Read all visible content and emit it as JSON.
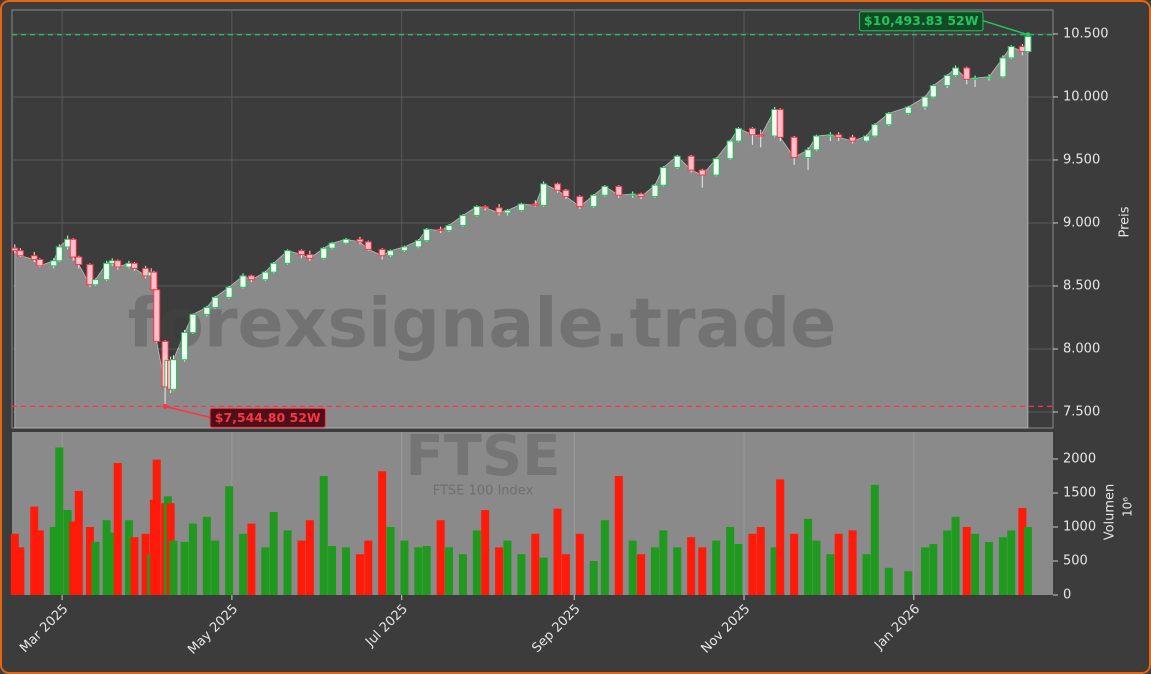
{
  "chart_data": {
    "type": "candlestick",
    "watermark": "forexsignale.trade",
    "symbol": "FTSE",
    "symbol_name": "FTSE 100 Index",
    "y_axis_label": "Preis",
    "volume_axis_label": "Volumen",
    "volume_axis_unit": "10⁶",
    "up_color": "#22c55e",
    "down_color": "#ff3344",
    "volume_up_color": "#1f9a1f",
    "volume_down_color": "#ff1a0a",
    "area_color": "#8a8a8a",
    "grid": true,
    "xlim": [
      "2025-02-11",
      "2026-02-20"
    ],
    "xticks": [
      {
        "value": "2025-03-01",
        "label": "Mar 2025"
      },
      {
        "value": "2025-05-01",
        "label": "May 2025"
      },
      {
        "value": "2025-07-01",
        "label": "Jul 2025"
      },
      {
        "value": "2025-09-01",
        "label": "Sep 2025"
      },
      {
        "value": "2025-11-01",
        "label": "Nov 2025"
      },
      {
        "value": "2026-01-01",
        "label": "Jan 2026"
      }
    ],
    "ylim": [
      7373,
      10690
    ],
    "yticks": [
      {
        "value": 7500,
        "label": "7.500"
      },
      {
        "value": 8000,
        "label": "8.000"
      },
      {
        "value": 8500,
        "label": "8.500"
      },
      {
        "value": 9000,
        "label": "9.000"
      },
      {
        "value": 9500,
        "label": "9.500"
      },
      {
        "value": 10000,
        "label": "10.000"
      },
      {
        "value": 10500,
        "label": "10.500"
      }
    ],
    "volume_ylim": [
      0,
      2397
    ],
    "volume_yticks": [
      0,
      500,
      1000,
      1500,
      2000
    ],
    "annotations": [
      {
        "text": "$10,493.83 52W",
        "value": 10493.83,
        "x": "2026-02-11",
        "color": "#22c55e"
      },
      {
        "text": "$7,544.80 52W",
        "value": 7544.8,
        "x": "2025-04-07",
        "color": "#ff3344"
      }
    ],
    "x": [
      "2025-02-12",
      "2025-02-14",
      "2025-02-19",
      "2025-02-21",
      "2025-02-26",
      "2025-02-28",
      "2025-03-03",
      "2025-03-05",
      "2025-03-07",
      "2025-03-11",
      "2025-03-13",
      "2025-03-17",
      "2025-03-19",
      "2025-03-21",
      "2025-03-25",
      "2025-03-27",
      "2025-03-31",
      "2025-04-02",
      "2025-04-03",
      "2025-04-04",
      "2025-04-07",
      "2025-04-08",
      "2025-04-09",
      "2025-04-10",
      "2025-04-14",
      "2025-04-17",
      "2025-04-22",
      "2025-04-25",
      "2025-04-30",
      "2025-05-05",
      "2025-05-08",
      "2025-05-13",
      "2025-05-16",
      "2025-05-21",
      "2025-05-26",
      "2025-05-29",
      "2025-06-03",
      "2025-06-06",
      "2025-06-11",
      "2025-06-16",
      "2025-06-19",
      "2025-06-24",
      "2025-06-27",
      "2025-07-02",
      "2025-07-07",
      "2025-07-10",
      "2025-07-15",
      "2025-07-18",
      "2025-07-23",
      "2025-07-28",
      "2025-07-31",
      "2025-08-05",
      "2025-08-08",
      "2025-08-13",
      "2025-08-18",
      "2025-08-21",
      "2025-08-26",
      "2025-08-29",
      "2025-09-03",
      "2025-09-08",
      "2025-09-12",
      "2025-09-17",
      "2025-09-22",
      "2025-09-25",
      "2025-09-30",
      "2025-10-03",
      "2025-10-08",
      "2025-10-13",
      "2025-10-17",
      "2025-10-22",
      "2025-10-27",
      "2025-10-30",
      "2025-11-04",
      "2025-11-07",
      "2025-11-12",
      "2025-11-14",
      "2025-11-19",
      "2025-11-24",
      "2025-11-27",
      "2025-12-02",
      "2025-12-05",
      "2025-12-10",
      "2025-12-15",
      "2025-12-18",
      "2025-12-23",
      "2025-12-30",
      "2026-01-05",
      "2026-01-08",
      "2026-01-13",
      "2026-01-16",
      "2026-01-20",
      "2026-01-23",
      "2026-01-28",
      "2026-02-02",
      "2026-02-05",
      "2026-02-09",
      "2026-02-11"
    ],
    "open": [
      8800,
      8780,
      8740,
      8710,
      8660,
      8700,
      8810,
      8870,
      8730,
      8670,
      8510,
      8550,
      8680,
      8700,
      8650,
      8680,
      8640,
      8580,
      8610,
      8470,
      8060,
      7700,
      7910,
      7680,
      7915,
      8130,
      8275,
      8330,
      8410,
      8490,
      8580,
      8550,
      8610,
      8680,
      8780,
      8750,
      8720,
      8800,
      8840,
      8870,
      8850,
      8790,
      8740,
      8780,
      8810,
      8860,
      8950,
      8940,
      8980,
      9060,
      9130,
      9120,
      9080,
      9100,
      9150,
      9140,
      9310,
      9260,
      9210,
      9130,
      9220,
      9290,
      9220,
      9230,
      9210,
      9300,
      9440,
      9530,
      9420,
      9380,
      9510,
      9650,
      9750,
      9700,
      9690,
      9900,
      9680,
      9520,
      9580,
      9690,
      9700,
      9680,
      9650,
      9690,
      9780,
      9870,
      9920,
      10000,
      10090,
      10170,
      10230,
      10140,
      10150,
      10160,
      10310,
      10400,
      10360
    ],
    "high": [
      8830,
      8800,
      8770,
      8720,
      8720,
      8830,
      8900,
      8880,
      8740,
      8680,
      8560,
      8700,
      8720,
      8710,
      8700,
      8690,
      8660,
      8640,
      8620,
      8480,
      8070,
      7920,
      7940,
      7950,
      8150,
      8280,
      8340,
      8420,
      8500,
      8600,
      8590,
      8620,
      8690,
      8790,
      8790,
      8780,
      8810,
      8850,
      8880,
      8890,
      8860,
      8800,
      8790,
      8820,
      8870,
      8960,
      8970,
      8990,
      9070,
      9140,
      9140,
      9150,
      9110,
      9160,
      9180,
      9330,
      9320,
      9270,
      9220,
      9230,
      9300,
      9300,
      9250,
      9240,
      9310,
      9450,
      9540,
      9540,
      9430,
      9520,
      9660,
      9760,
      9760,
      9740,
      9920,
      9910,
      9690,
      9600,
      9700,
      9720,
      9720,
      9700,
      9700,
      9790,
      9880,
      9930,
      10010,
      10100,
      10180,
      10250,
      10240,
      10170,
      10180,
      10330,
      10410,
      10420,
      10493.83
    ],
    "low": [
      8760,
      8730,
      8690,
      8650,
      8640,
      8690,
      8790,
      8700,
      8640,
      8490,
      8500,
      8540,
      8660,
      8630,
      8640,
      8620,
      8560,
      8570,
      8450,
      8050,
      7544.8,
      7690,
      7650,
      7670,
      7900,
      8120,
      8260,
      8320,
      8400,
      8480,
      8530,
      8540,
      8600,
      8670,
      8720,
      8700,
      8710,
      8790,
      8830,
      8830,
      8780,
      8710,
      8730,
      8770,
      8800,
      8850,
      8920,
      8930,
      8970,
      9050,
      9100,
      9060,
      9060,
      9090,
      9130,
      9130,
      9240,
      9190,
      9110,
      9120,
      9210,
      9200,
      9200,
      9190,
      9200,
      9290,
      9430,
      9400,
      9280,
      9370,
      9500,
      9640,
      9620,
      9600,
      9680,
      9650,
      9460,
      9420,
      9570,
      9650,
      9650,
      9630,
      9640,
      9680,
      9770,
      9860,
      9900,
      9990,
      10070,
      10160,
      10100,
      10080,
      10130,
      10150,
      10300,
      10330,
      10350
    ],
    "close": [
      8780,
      8740,
      8710,
      8660,
      8700,
      8810,
      8870,
      8730,
      8670,
      8510,
      8550,
      8680,
      8700,
      8650,
      8680,
      8640,
      8580,
      8610,
      8470,
      8060,
      7700,
      7910,
      7680,
      7915,
      8130,
      8275,
      8330,
      8410,
      8490,
      8580,
      8550,
      8610,
      8680,
      8780,
      8750,
      8720,
      8800,
      8840,
      8870,
      8850,
      8790,
      8740,
      8780,
      8810,
      8860,
      8950,
      8940,
      8980,
      9060,
      9130,
      9120,
      9080,
      9100,
      9150,
      9140,
      9310,
      9260,
      9210,
      9130,
      9220,
      9290,
      9220,
      9230,
      9210,
      9300,
      9440,
      9530,
      9420,
      9380,
      9510,
      9650,
      9750,
      9700,
      9690,
      9900,
      9680,
      9520,
      9580,
      9690,
      9700,
      9680,
      9650,
      9690,
      9780,
      9870,
      9920,
      10000,
      10090,
      10170,
      10230,
      10140,
      10150,
      10160,
      10310,
      10400,
      10360,
      10480
    ],
    "volume": [
      900,
      700,
      1300,
      950,
      1000,
      2170,
      1250,
      1080,
      1530,
      1000,
      780,
      1100,
      920,
      1940,
      1100,
      850,
      900,
      600,
      1400,
      1990,
      1350,
      1450,
      1350,
      800,
      780,
      1050,
      1150,
      800,
      1600,
      900,
      1050,
      700,
      1220,
      950,
      800,
      1100,
      1750,
      720,
      700,
      600,
      800,
      1820,
      1000,
      800,
      700,
      720,
      1100,
      700,
      600,
      950,
      1250,
      700,
      800,
      600,
      900,
      550,
      1270,
      600,
      900,
      500,
      1100,
      1750,
      800,
      600,
      700,
      950,
      700,
      850,
      700,
      800,
      1000,
      750,
      900,
      1000,
      700,
      1700,
      900,
      1120,
      800,
      600,
      900,
      950,
      600,
      1620,
      400,
      350,
      700,
      750,
      950,
      1150,
      1000,
      900,
      780,
      850,
      950,
      1280,
      1000
    ]
  }
}
